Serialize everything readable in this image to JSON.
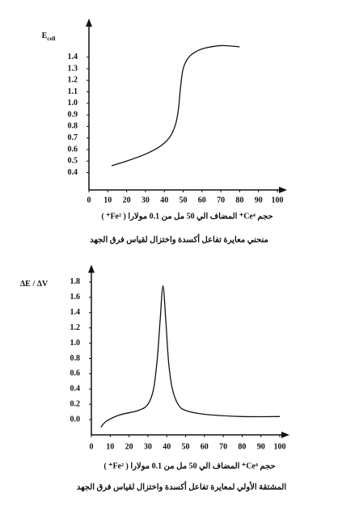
{
  "chart_data": [
    {
      "type": "line",
      "y_label": "E",
      "y_label_sub": "cell",
      "x_label": "حجم Ce⁴⁺ المضاف الي 50 مل من 0.1 مولارا ( Fe²⁺ )",
      "caption": "منحني معايرة تفاعل أكسدة واختزال لقياس فرق الجهد",
      "x": [
        12,
        20,
        30,
        38,
        43,
        46,
        47.5,
        48.5,
        50,
        53,
        57,
        62,
        70,
        80
      ],
      "values": [
        0.46,
        0.5,
        0.56,
        0.63,
        0.71,
        0.82,
        0.95,
        1.12,
        1.3,
        1.4,
        1.45,
        1.48,
        1.5,
        1.49
      ],
      "color": "#111111",
      "xlim": [
        0,
        100
      ],
      "xticks": [
        0,
        10,
        20,
        30,
        40,
        50,
        60,
        70,
        80,
        90,
        100
      ],
      "ylim": [
        0.25,
        1.65
      ],
      "yticks": [
        0.4,
        0.5,
        0.6,
        0.7,
        0.8,
        0.9,
        {
          "value": 1,
          "label": "1.0"
        },
        1.1,
        1.2,
        1.3,
        1.4
      ]
    },
    {
      "type": "line",
      "y_label": "ΔE / ΔV",
      "x_label": "حجم Ce⁴⁺ المضاف الي 50 مل من 0.1 مولارا ( Fe²⁺ )",
      "caption": "المشتقة الأولي لمعايرة تفاعل أكسدة واختزال لقياس فرق الجهد",
      "x": [
        5,
        8,
        15,
        25,
        30,
        33,
        35,
        36.5,
        38,
        39.5,
        41,
        43,
        46,
        50,
        60,
        80,
        100
      ],
      "values": [
        -0.1,
        -0.02,
        0.06,
        0.12,
        0.2,
        0.4,
        0.8,
        1.3,
        1.75,
        1.3,
        0.75,
        0.4,
        0.2,
        0.12,
        0.07,
        0.04,
        0.04
      ],
      "color": "#111111",
      "xlim": [
        0,
        100
      ],
      "xticks": [
        0,
        10,
        20,
        30,
        40,
        50,
        60,
        70,
        80,
        90,
        100
      ],
      "ylim": [
        -0.2,
        1.9
      ],
      "yticks": [
        {
          "value": 0,
          "label": "0.0"
        },
        0.2,
        0.4,
        0.6,
        0.8,
        {
          "value": 1,
          "label": "1.0"
        },
        1.2,
        1.4,
        1.6,
        1.8
      ]
    }
  ]
}
